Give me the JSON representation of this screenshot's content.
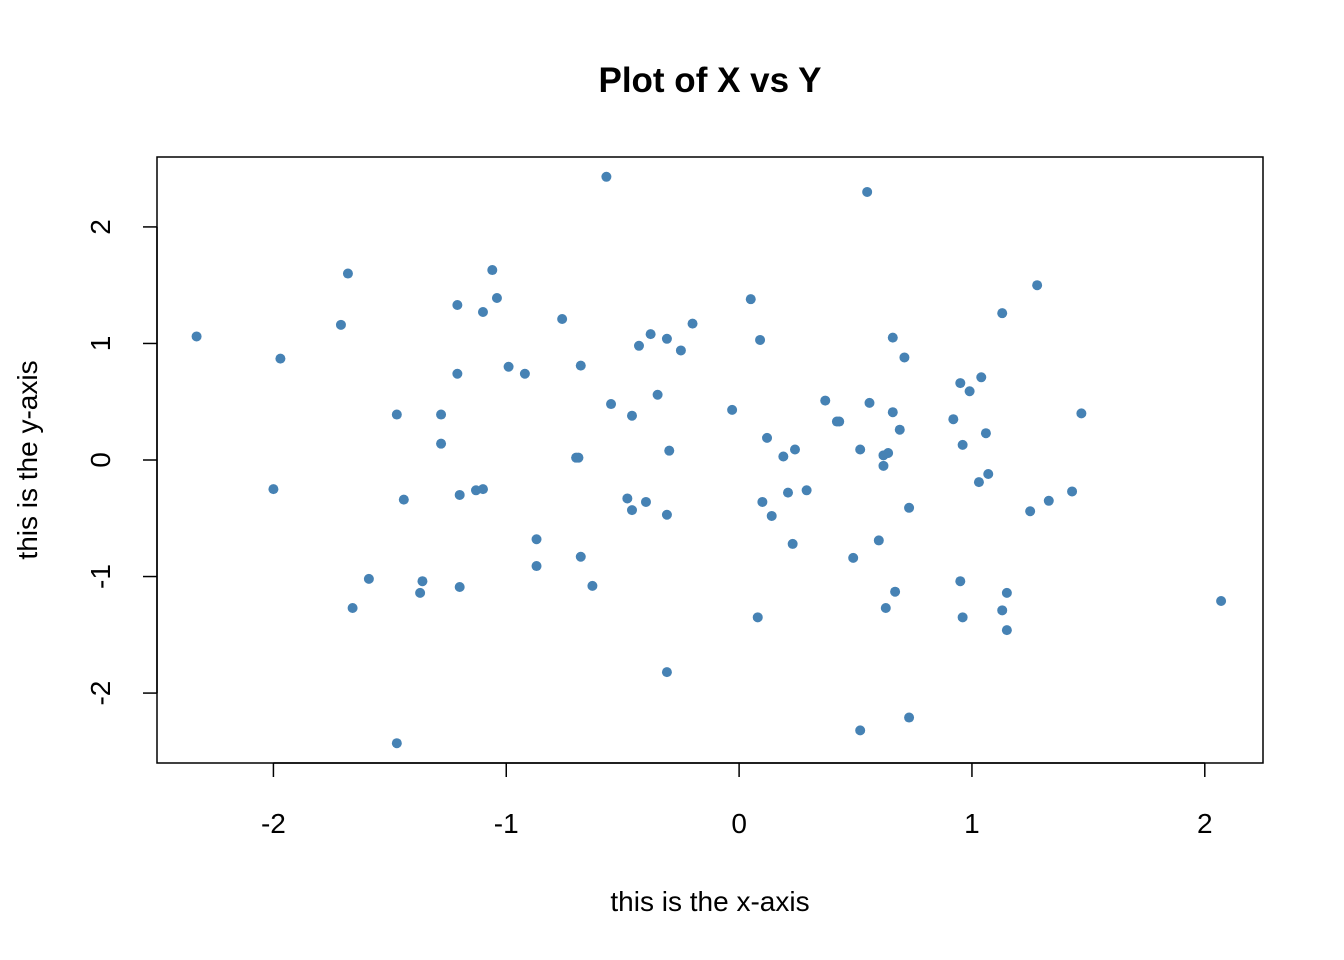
{
  "chart_data": {
    "type": "scatter",
    "title": "Plot of X vs Y",
    "xlabel": "this is the x-axis",
    "ylabel": "this is the y-axis",
    "xlim": [
      -2.5,
      2.25
    ],
    "ylim": [
      -2.6,
      2.6
    ],
    "xticks": [
      -2,
      -1,
      0,
      1,
      2
    ],
    "yticks": [
      -2,
      -1,
      0,
      1,
      2
    ],
    "xtick_labels": [
      "-2",
      "-1",
      "0",
      "1",
      "2"
    ],
    "ytick_labels": [
      "-2",
      "-1",
      "0",
      "1",
      "2"
    ],
    "grid": false,
    "point_color": "#4682B4",
    "points": [
      [
        -2.33,
        1.06
      ],
      [
        -1.97,
        0.87
      ],
      [
        -2.0,
        -0.25
      ],
      [
        -1.68,
        1.6
      ],
      [
        -1.71,
        1.16
      ],
      [
        -1.66,
        -1.27
      ],
      [
        -1.59,
        -1.02
      ],
      [
        -1.47,
        0.39
      ],
      [
        -1.44,
        -0.34
      ],
      [
        -1.47,
        -2.43
      ],
      [
        -1.36,
        -1.04
      ],
      [
        -1.37,
        -1.14
      ],
      [
        -1.28,
        0.39
      ],
      [
        -1.28,
        0.14
      ],
      [
        -1.21,
        1.33
      ],
      [
        -1.21,
        0.74
      ],
      [
        -1.2,
        -0.3
      ],
      [
        -1.2,
        -1.09
      ],
      [
        -1.13,
        -0.26
      ],
      [
        -1.1,
        -0.25
      ],
      [
        -1.1,
        1.27
      ],
      [
        -1.06,
        1.63
      ],
      [
        -1.04,
        1.39
      ],
      [
        -0.99,
        0.8
      ],
      [
        -0.92,
        0.74
      ],
      [
        -0.87,
        -0.68
      ],
      [
        -0.87,
        -0.91
      ],
      [
        -0.76,
        1.21
      ],
      [
        -0.7,
        0.02
      ],
      [
        -0.69,
        0.02
      ],
      [
        -0.68,
        0.81
      ],
      [
        -0.68,
        -0.83
      ],
      [
        -0.63,
        -1.08
      ],
      [
        -0.57,
        2.43
      ],
      [
        -0.55,
        0.48
      ],
      [
        -0.48,
        -0.33
      ],
      [
        -0.46,
        -0.43
      ],
      [
        -0.46,
        0.38
      ],
      [
        -0.43,
        0.98
      ],
      [
        -0.4,
        -0.36
      ],
      [
        -0.38,
        1.08
      ],
      [
        -0.35,
        0.56
      ],
      [
        -0.31,
        1.04
      ],
      [
        -0.3,
        0.08
      ],
      [
        -0.31,
        -0.47
      ],
      [
        -0.31,
        -1.82
      ],
      [
        -0.25,
        0.94
      ],
      [
        -0.2,
        1.17
      ],
      [
        -0.03,
        0.43
      ],
      [
        0.05,
        1.38
      ],
      [
        0.09,
        1.03
      ],
      [
        0.1,
        -0.36
      ],
      [
        0.12,
        0.19
      ],
      [
        0.14,
        -0.48
      ],
      [
        0.19,
        0.03
      ],
      [
        0.21,
        -0.28
      ],
      [
        0.23,
        -0.72
      ],
      [
        0.24,
        0.09
      ],
      [
        0.29,
        -0.26
      ],
      [
        0.08,
        -1.35
      ],
      [
        0.37,
        0.51
      ],
      [
        0.42,
        0.33
      ],
      [
        0.43,
        0.33
      ],
      [
        0.49,
        -0.84
      ],
      [
        0.52,
        0.09
      ],
      [
        0.55,
        2.3
      ],
      [
        0.56,
        0.49
      ],
      [
        0.52,
        -2.32
      ],
      [
        0.6,
        -0.69
      ],
      [
        0.62,
        0.04
      ],
      [
        0.62,
        -0.05
      ],
      [
        0.63,
        -1.27
      ],
      [
        0.64,
        0.06
      ],
      [
        0.66,
        0.41
      ],
      [
        0.66,
        1.05
      ],
      [
        0.67,
        -1.13
      ],
      [
        0.69,
        0.26
      ],
      [
        0.71,
        0.88
      ],
      [
        0.73,
        -0.41
      ],
      [
        0.73,
        -2.21
      ],
      [
        0.92,
        0.35
      ],
      [
        0.95,
        0.66
      ],
      [
        0.96,
        0.13
      ],
      [
        0.95,
        -1.04
      ],
      [
        0.96,
        -1.35
      ],
      [
        0.99,
        0.59
      ],
      [
        1.03,
        -0.19
      ],
      [
        1.04,
        0.71
      ],
      [
        1.06,
        0.23
      ],
      [
        1.07,
        -0.12
      ],
      [
        1.13,
        1.26
      ],
      [
        1.13,
        -1.29
      ],
      [
        1.15,
        -1.14
      ],
      [
        1.15,
        -1.46
      ],
      [
        1.25,
        -0.44
      ],
      [
        1.28,
        1.5
      ],
      [
        1.33,
        -0.35
      ],
      [
        1.43,
        -0.27
      ],
      [
        1.47,
        0.4
      ],
      [
        2.07,
        -1.21
      ]
    ]
  }
}
